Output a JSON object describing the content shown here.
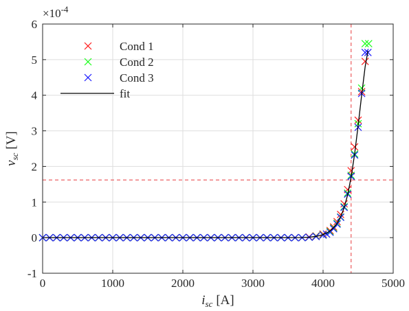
{
  "chart_data": {
    "type": "scatter",
    "xlabel": {
      "main": "i",
      "sub": "sc",
      "unit": "[A]"
    },
    "ylabel": {
      "main": "v",
      "sub": "sc",
      "unit": "[V]"
    },
    "y_exponent": {
      "base": "×10",
      "power": "-4"
    },
    "xlim": [
      0,
      5000
    ],
    "ylim": [
      -1,
      6
    ],
    "x_ticks": [
      0,
      1000,
      2000,
      3000,
      4000,
      5000
    ],
    "y_ticks": [
      -1,
      0,
      1,
      2,
      3,
      4,
      5,
      6
    ],
    "grid": true,
    "legend_position": "top-left",
    "reference_lines": {
      "x": 4400,
      "y": 1.62,
      "color": "#e8393c",
      "style": "dashed"
    },
    "series": [
      {
        "name": "Cond 1",
        "marker": "x",
        "color": "#ff1a1a",
        "x": [
          0,
          100,
          200,
          300,
          400,
          500,
          600,
          700,
          800,
          900,
          1000,
          1100,
          1200,
          1300,
          1400,
          1500,
          1600,
          1700,
          1800,
          1900,
          2000,
          2100,
          2200,
          2300,
          2400,
          2500,
          2600,
          2700,
          2800,
          2900,
          3000,
          3100,
          3200,
          3300,
          3400,
          3500,
          3600,
          3700,
          3800,
          3900,
          4000,
          4100,
          4150,
          4200,
          4250,
          4300,
          4350,
          4400,
          4450,
          4500,
          4550,
          4600
        ],
        "y": [
          0,
          0,
          0,
          0,
          0,
          0,
          0,
          0,
          0,
          0,
          0,
          0,
          0,
          0,
          0,
          0,
          0,
          0,
          0,
          0,
          0,
          0,
          0,
          0,
          0,
          0,
          0,
          0,
          0,
          0,
          0,
          0,
          0,
          0,
          0,
          0,
          0,
          0,
          0.02,
          0.05,
          0.1,
          0.2,
          0.3,
          0.45,
          0.65,
          0.95,
          1.35,
          1.88,
          2.55,
          3.3,
          4.1,
          4.95
        ]
      },
      {
        "name": "Cond 2",
        "marker": "x",
        "color": "#1aff1a",
        "x": [
          0,
          100,
          200,
          300,
          400,
          500,
          600,
          700,
          800,
          900,
          1000,
          1100,
          1200,
          1300,
          1400,
          1500,
          1600,
          1700,
          1800,
          1900,
          2000,
          2100,
          2200,
          2300,
          2400,
          2500,
          2600,
          2700,
          2800,
          2900,
          3000,
          3100,
          3200,
          3300,
          3400,
          3500,
          3600,
          3700,
          3800,
          3900,
          4000,
          4100,
          4150,
          4200,
          4250,
          4300,
          4350,
          4400,
          4450,
          4500,
          4550,
          4600,
          4650
        ],
        "y": [
          0,
          0,
          0,
          0,
          0,
          0,
          0,
          0,
          0,
          0,
          0,
          0,
          0,
          0,
          0,
          0,
          0,
          0,
          0,
          0,
          0,
          0,
          0,
          0,
          0,
          0,
          0,
          0,
          0,
          0,
          0,
          0,
          0,
          0,
          0,
          0,
          0,
          0,
          0.01,
          0.04,
          0.08,
          0.17,
          0.27,
          0.4,
          0.58,
          0.87,
          1.25,
          1.75,
          2.35,
          3.2,
          4.2,
          5.45,
          5.45
        ]
      },
      {
        "name": "Cond 3",
        "marker": "x",
        "color": "#1a1aff",
        "x": [
          0,
          100,
          200,
          300,
          400,
          500,
          600,
          700,
          800,
          900,
          1000,
          1100,
          1200,
          1300,
          1400,
          1500,
          1600,
          1700,
          1800,
          1900,
          2000,
          2100,
          2200,
          2300,
          2400,
          2500,
          2600,
          2700,
          2800,
          2900,
          3000,
          3100,
          3200,
          3300,
          3400,
          3500,
          3600,
          3700,
          3800,
          3900,
          4000,
          4050,
          4100,
          4150,
          4200,
          4250,
          4300,
          4350,
          4400,
          4450,
          4500,
          4550,
          4600,
          4640
        ],
        "y": [
          0,
          0,
          0,
          0,
          0,
          0,
          0,
          0,
          0,
          0,
          0,
          0,
          0,
          0,
          0,
          0,
          0,
          0,
          0,
          0,
          0,
          0,
          0,
          0,
          0,
          0,
          0,
          0,
          0,
          0,
          0,
          0,
          0,
          0,
          0,
          0,
          0,
          0,
          0.01,
          0.03,
          0.07,
          0.1,
          0.15,
          0.25,
          0.38,
          0.57,
          0.85,
          1.22,
          1.72,
          2.32,
          3.1,
          4.05,
          5.2,
          5.2
        ]
      },
      {
        "name": "fit",
        "marker": "line",
        "color": "#000000",
        "x": [
          0,
          500,
          1000,
          1500,
          2000,
          2500,
          3000,
          3500,
          3700,
          3800,
          3900,
          4000,
          4050,
          4100,
          4150,
          4200,
          4250,
          4300,
          4350,
          4400,
          4450,
          4500,
          4550,
          4600,
          4640
        ],
        "y": [
          0,
          0,
          0,
          0,
          0,
          0,
          0,
          0,
          0.003,
          0.012,
          0.035,
          0.085,
          0.13,
          0.19,
          0.28,
          0.4,
          0.58,
          0.84,
          1.2,
          1.7,
          2.35,
          3.15,
          4.0,
          4.8,
          5.25
        ]
      }
    ]
  }
}
